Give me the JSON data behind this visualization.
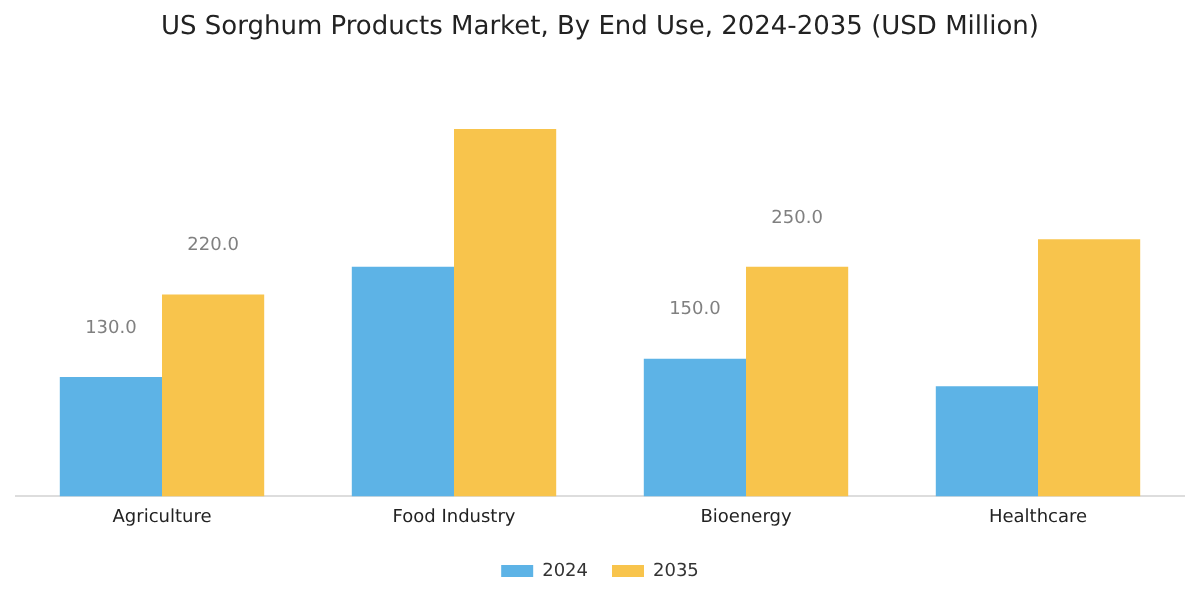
{
  "chart_data": {
    "type": "bar",
    "title": "US Sorghum Products Market, By End Use, 2024-2035 (USD Million)",
    "categories": [
      "Agriculture",
      "Food Industry",
      "Bioenergy",
      "Healthcare"
    ],
    "series": [
      {
        "name": "2024",
        "color": "#5db3e6",
        "values": [
          130,
          250,
          150,
          120
        ],
        "value_labels": [
          "130.0",
          null,
          "150.0",
          null
        ]
      },
      {
        "name": "2035",
        "color": "#f8c44c",
        "values": [
          220,
          400,
          250,
          280
        ],
        "value_labels": [
          "220.0",
          null,
          "250.0",
          null
        ]
      }
    ],
    "tick_labels": "x",
    "grid": false,
    "legend": "bottom"
  }
}
